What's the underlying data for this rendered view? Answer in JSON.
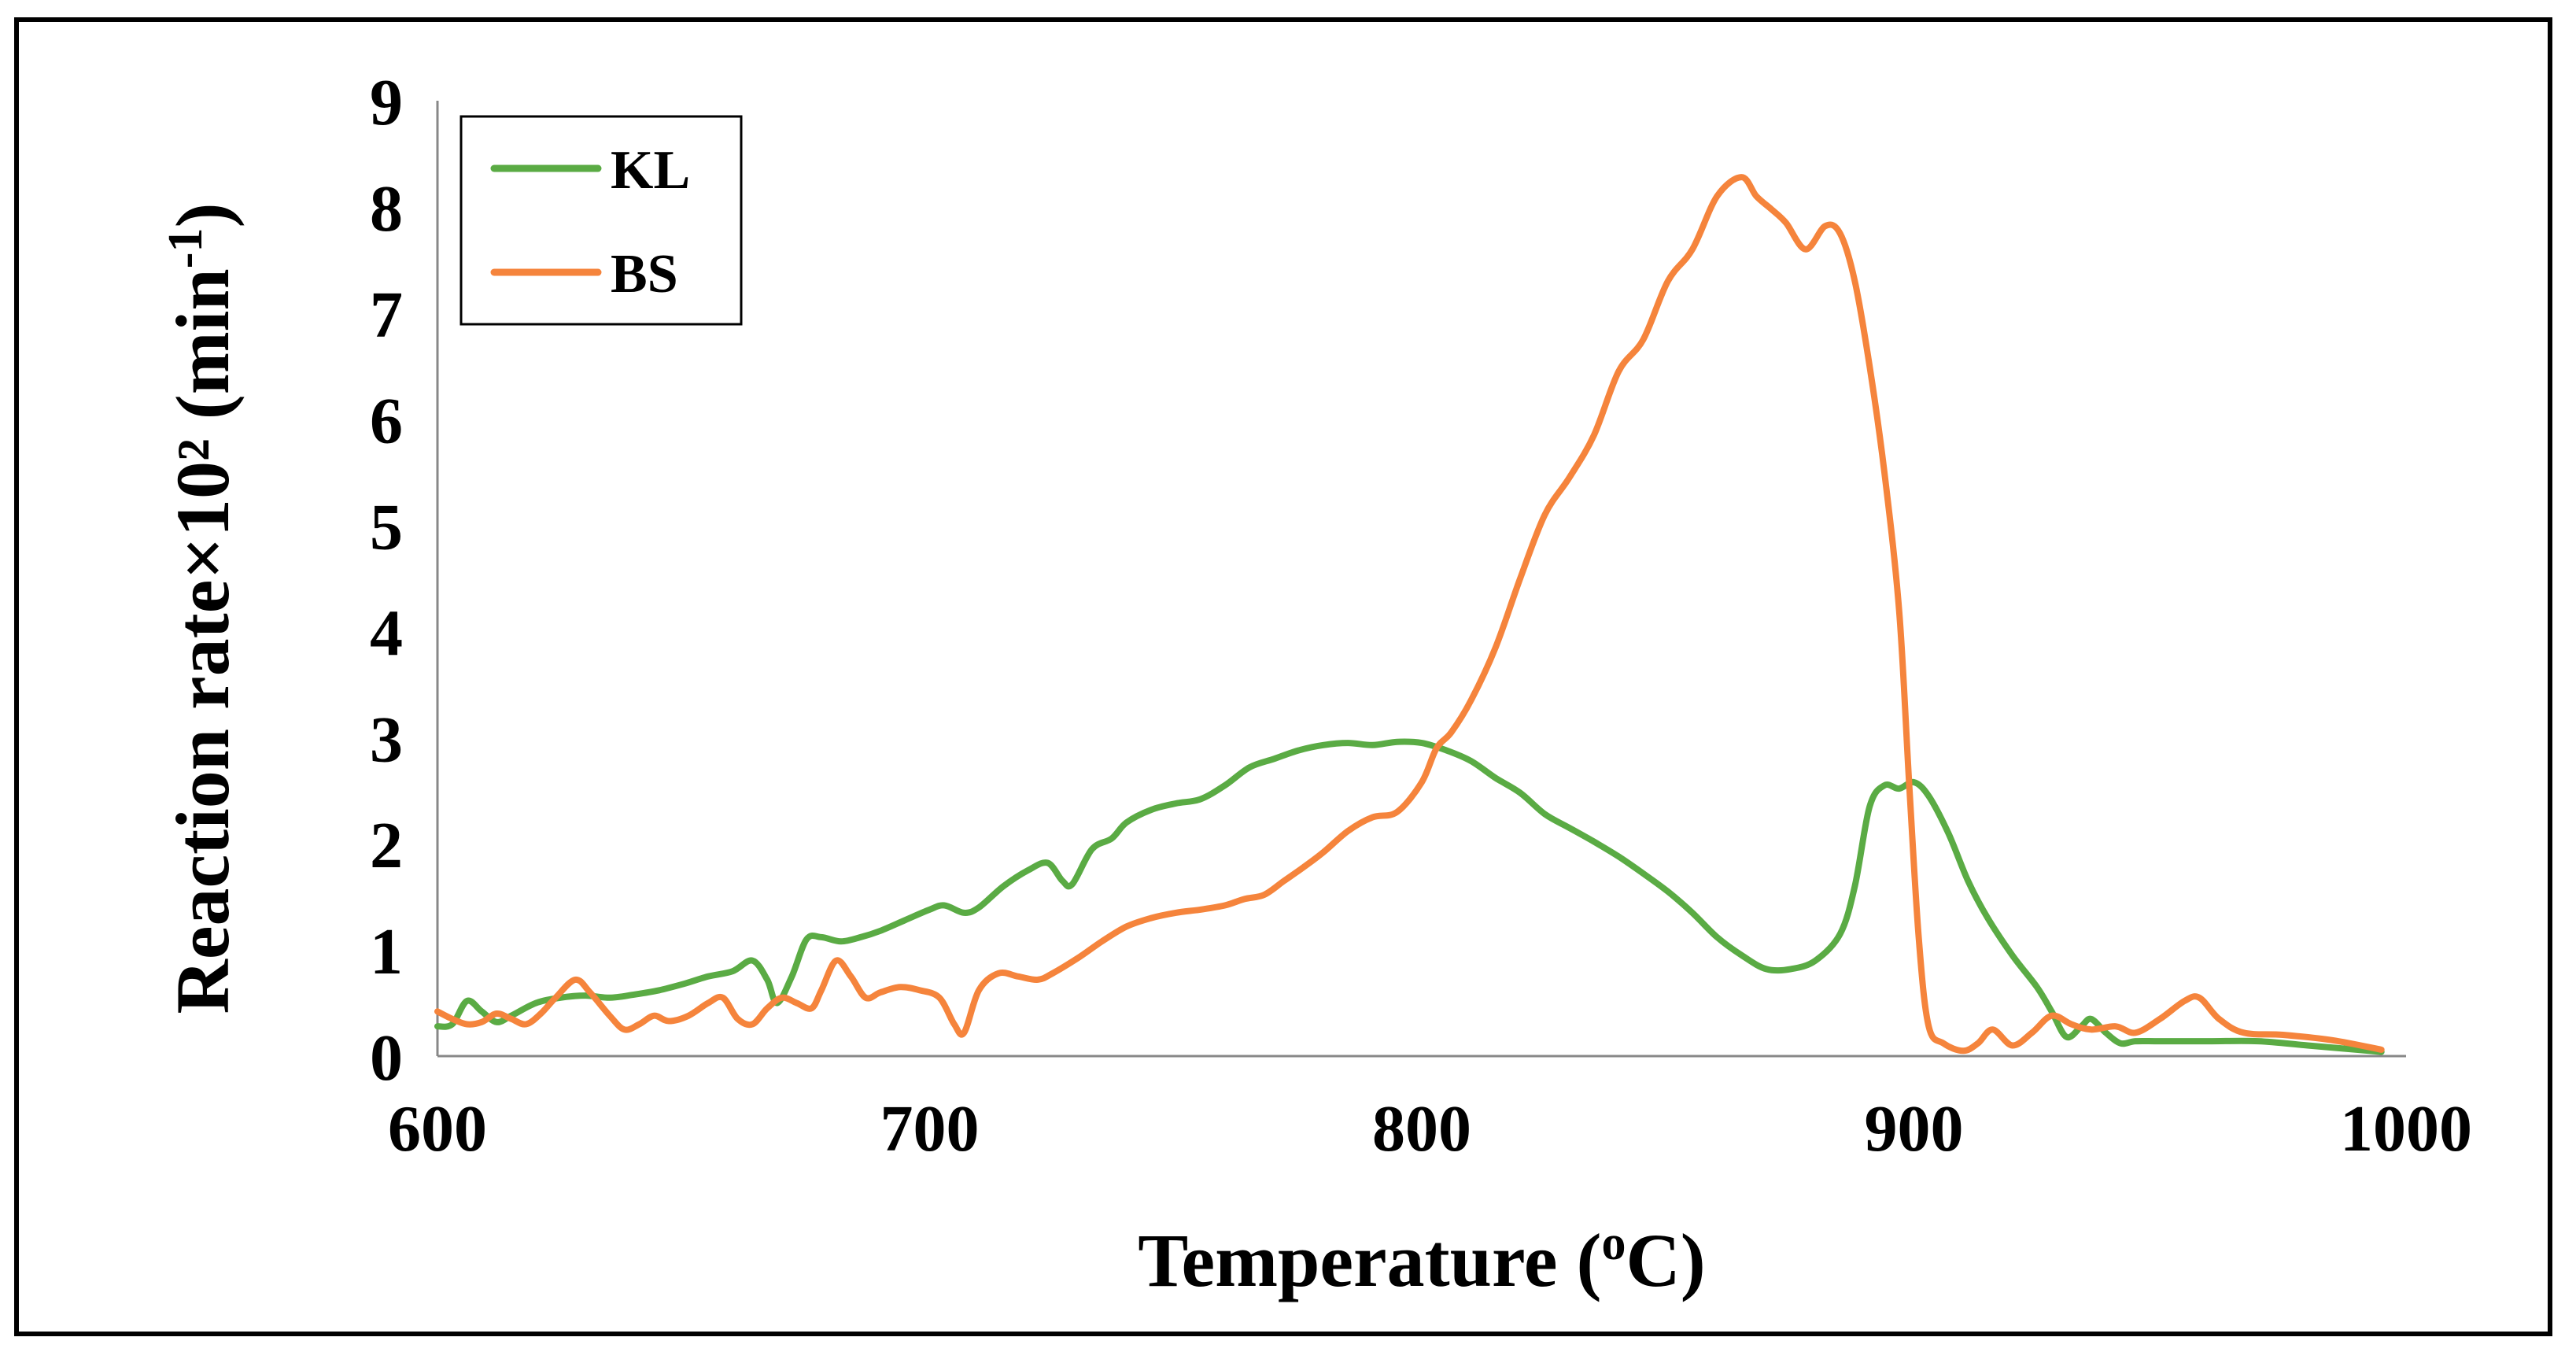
{
  "chart_data": {
    "type": "line",
    "title": "",
    "xlabel": "Temperature (",
    "xlabel_sup": "o",
    "xlabel_end": "C)",
    "ylabel": "Reaction rate×10² (min",
    "ylabel_sup": "-1",
    "ylabel_end": ")",
    "xlim": [
      600,
      1000
    ],
    "ylim": [
      0,
      9
    ],
    "xticks": [
      "600",
      "700",
      "800",
      "900",
      "1000"
    ],
    "yticks": [
      "0",
      "1",
      "2",
      "3",
      "4",
      "5",
      "6",
      "7",
      "8",
      "9"
    ],
    "grid": false,
    "legend_position": "top-left",
    "colors": {
      "KL": "#5aab44",
      "BS": "#f5843c"
    },
    "series": [
      {
        "name": "KL",
        "points": [
          [
            600,
            0.28
          ],
          [
            603,
            0.3
          ],
          [
            606,
            0.52
          ],
          [
            609,
            0.42
          ],
          [
            612,
            0.32
          ],
          [
            615,
            0.38
          ],
          [
            620,
            0.5
          ],
          [
            625,
            0.55
          ],
          [
            630,
            0.57
          ],
          [
            635,
            0.55
          ],
          [
            640,
            0.58
          ],
          [
            645,
            0.62
          ],
          [
            650,
            0.68
          ],
          [
            655,
            0.75
          ],
          [
            660,
            0.8
          ],
          [
            664,
            0.9
          ],
          [
            667,
            0.72
          ],
          [
            669,
            0.5
          ],
          [
            672,
            0.75
          ],
          [
            675,
            1.1
          ],
          [
            678,
            1.12
          ],
          [
            682,
            1.08
          ],
          [
            686,
            1.12
          ],
          [
            690,
            1.18
          ],
          [
            695,
            1.28
          ],
          [
            700,
            1.38
          ],
          [
            703,
            1.42
          ],
          [
            707,
            1.35
          ],
          [
            710,
            1.4
          ],
          [
            715,
            1.6
          ],
          [
            720,
            1.75
          ],
          [
            724,
            1.82
          ],
          [
            727,
            1.65
          ],
          [
            729,
            1.62
          ],
          [
            733,
            1.95
          ],
          [
            737,
            2.05
          ],
          [
            740,
            2.2
          ],
          [
            745,
            2.32
          ],
          [
            750,
            2.38
          ],
          [
            755,
            2.42
          ],
          [
            760,
            2.55
          ],
          [
            765,
            2.72
          ],
          [
            770,
            2.8
          ],
          [
            775,
            2.88
          ],
          [
            780,
            2.93
          ],
          [
            785,
            2.95
          ],
          [
            790,
            2.93
          ],
          [
            795,
            2.96
          ],
          [
            800,
            2.95
          ],
          [
            805,
            2.88
          ],
          [
            810,
            2.78
          ],
          [
            815,
            2.62
          ],
          [
            820,
            2.48
          ],
          [
            825,
            2.28
          ],
          [
            830,
            2.15
          ],
          [
            835,
            2.02
          ],
          [
            840,
            1.88
          ],
          [
            845,
            1.72
          ],
          [
            850,
            1.55
          ],
          [
            855,
            1.35
          ],
          [
            860,
            1.12
          ],
          [
            865,
            0.95
          ],
          [
            870,
            0.82
          ],
          [
            875,
            0.82
          ],
          [
            880,
            0.9
          ],
          [
            885,
            1.15
          ],
          [
            888,
            1.6
          ],
          [
            891,
            2.35
          ],
          [
            894,
            2.55
          ],
          [
            897,
            2.52
          ],
          [
            900,
            2.58
          ],
          [
            903,
            2.45
          ],
          [
            907,
            2.1
          ],
          [
            911,
            1.65
          ],
          [
            915,
            1.3
          ],
          [
            920,
            0.95
          ],
          [
            925,
            0.65
          ],
          [
            928,
            0.42
          ],
          [
            931,
            0.18
          ],
          [
            934,
            0.28
          ],
          [
            936,
            0.35
          ],
          [
            939,
            0.22
          ],
          [
            942,
            0.12
          ],
          [
            945,
            0.14
          ],
          [
            950,
            0.14
          ],
          [
            960,
            0.14
          ],
          [
            970,
            0.14
          ],
          [
            980,
            0.1
          ],
          [
            990,
            0.06
          ],
          [
            995,
            0.04
          ]
        ]
      },
      {
        "name": "BS",
        "points": [
          [
            600,
            0.42
          ],
          [
            603,
            0.35
          ],
          [
            606,
            0.3
          ],
          [
            609,
            0.32
          ],
          [
            612,
            0.4
          ],
          [
            615,
            0.35
          ],
          [
            618,
            0.3
          ],
          [
            621,
            0.4
          ],
          [
            624,
            0.55
          ],
          [
            628,
            0.72
          ],
          [
            631,
            0.6
          ],
          [
            635,
            0.38
          ],
          [
            638,
            0.25
          ],
          [
            641,
            0.3
          ],
          [
            644,
            0.38
          ],
          [
            647,
            0.33
          ],
          [
            651,
            0.38
          ],
          [
            655,
            0.5
          ],
          [
            658,
            0.55
          ],
          [
            661,
            0.35
          ],
          [
            664,
            0.3
          ],
          [
            667,
            0.45
          ],
          [
            670,
            0.55
          ],
          [
            673,
            0.5
          ],
          [
            676,
            0.45
          ],
          [
            678,
            0.62
          ],
          [
            681,
            0.9
          ],
          [
            684,
            0.75
          ],
          [
            687,
            0.55
          ],
          [
            690,
            0.6
          ],
          [
            694,
            0.65
          ],
          [
            698,
            0.62
          ],
          [
            702,
            0.55
          ],
          [
            705,
            0.3
          ],
          [
            707,
            0.22
          ],
          [
            710,
            0.62
          ],
          [
            714,
            0.78
          ],
          [
            718,
            0.75
          ],
          [
            722,
            0.72
          ],
          [
            725,
            0.78
          ],
          [
            730,
            0.92
          ],
          [
            735,
            1.08
          ],
          [
            740,
            1.22
          ],
          [
            745,
            1.3
          ],
          [
            750,
            1.35
          ],
          [
            755,
            1.38
          ],
          [
            760,
            1.42
          ],
          [
            764,
            1.48
          ],
          [
            768,
            1.52
          ],
          [
            772,
            1.65
          ],
          [
            776,
            1.78
          ],
          [
            780,
            1.92
          ],
          [
            785,
            2.12
          ],
          [
            790,
            2.25
          ],
          [
            795,
            2.3
          ],
          [
            800,
            2.58
          ],
          [
            803,
            2.9
          ],
          [
            806,
            3.05
          ],
          [
            810,
            3.35
          ],
          [
            815,
            3.85
          ],
          [
            820,
            4.5
          ],
          [
            825,
            5.1
          ],
          [
            830,
            5.45
          ],
          [
            835,
            5.85
          ],
          [
            840,
            6.45
          ],
          [
            845,
            6.75
          ],
          [
            850,
            7.3
          ],
          [
            855,
            7.6
          ],
          [
            860,
            8.1
          ],
          [
            865,
            8.28
          ],
          [
            868,
            8.1
          ],
          [
            871,
            7.98
          ],
          [
            874,
            7.85
          ],
          [
            878,
            7.6
          ],
          [
            882,
            7.82
          ],
          [
            885,
            7.75
          ],
          [
            888,
            7.3
          ],
          [
            891,
            6.5
          ],
          [
            894,
            5.5
          ],
          [
            897,
            4.2
          ],
          [
            899,
            2.6
          ],
          [
            901,
            1.1
          ],
          [
            903,
            0.28
          ],
          [
            906,
            0.12
          ],
          [
            910,
            0.05
          ],
          [
            913,
            0.12
          ],
          [
            916,
            0.25
          ],
          [
            920,
            0.1
          ],
          [
            924,
            0.22
          ],
          [
            928,
            0.38
          ],
          [
            932,
            0.3
          ],
          [
            936,
            0.25
          ],
          [
            941,
            0.28
          ],
          [
            945,
            0.22
          ],
          [
            950,
            0.35
          ],
          [
            955,
            0.52
          ],
          [
            958,
            0.55
          ],
          [
            962,
            0.35
          ],
          [
            967,
            0.22
          ],
          [
            975,
            0.2
          ],
          [
            985,
            0.15
          ],
          [
            995,
            0.06
          ]
        ]
      }
    ]
  }
}
